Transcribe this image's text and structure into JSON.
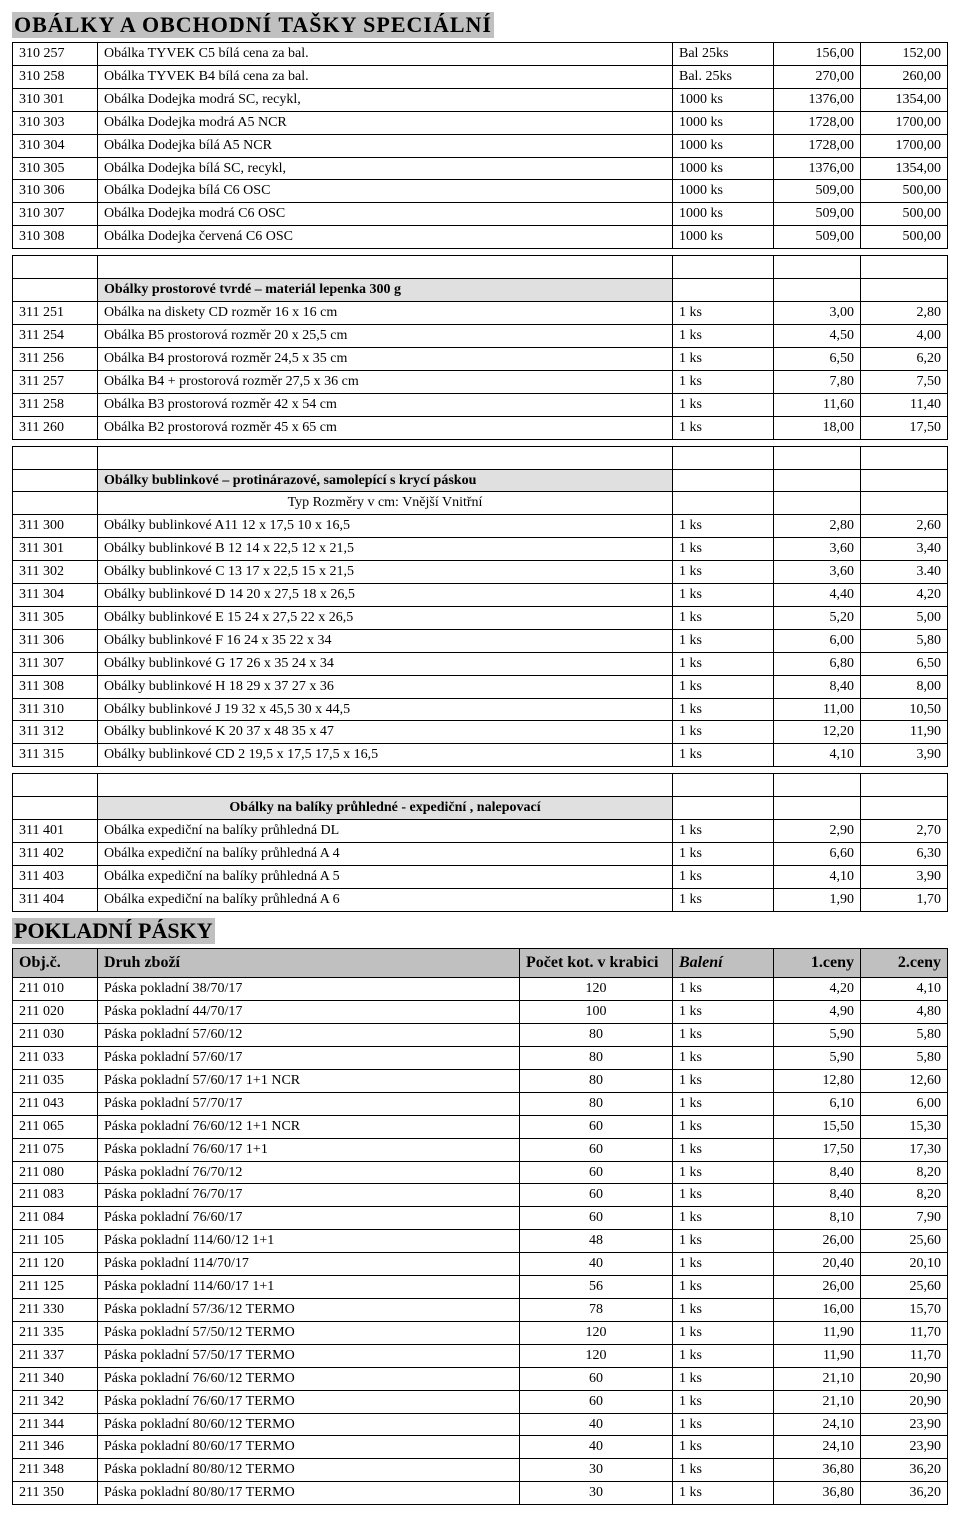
{
  "title_main": "OBÁLKY  A  OBCHODNÍ  TAŠKY   SPECIÁLNÍ",
  "title_pokl": "POKLADNÍ PÁSKY",
  "header2": {
    "obj": "Obj.č.",
    "druh": "Druh zboží",
    "kot": "Počet kot. v krabici",
    "baleni": "Balení",
    "c1": "1.ceny",
    "c2": "2.ceny"
  },
  "sec_typ": "Typ          Rozměry v cm:   Vnější      Vnitřní",
  "sec_obalky_prost": "Obálky prostorové tvrdé – materiál lepenka 300 g",
  "sec_obalky_bub": "Obálky  bublinkové – protinárazové, samolepící  s krycí páskou",
  "sec_obalky_bal": "Obálky na balíky průhledné  - expediční , nalepovací",
  "rows_a": [
    [
      "310 257",
      "Obálka TYVEK  C5   bílá                 cena za bal.",
      "Bal  25ks",
      "156,00",
      "152,00"
    ],
    [
      "310 258",
      "Obálka TYVEK  B4   bílá                 cena za bal.",
      "Bal.  25ks",
      "270,00",
      "260,00"
    ],
    [
      "310 301",
      "Obálka Dodejka  modrá  SC, recykl,",
      "1000 ks",
      "1376,00",
      "1354,00"
    ],
    [
      "310 303",
      "Obálka Dodejka  modrá  A5  NCR",
      "1000 ks",
      "1728,00",
      "1700,00"
    ],
    [
      "310 304",
      "Obálka Dodejka bílá      A5  NCR",
      "1000 ks",
      "1728,00",
      "1700,00"
    ],
    [
      "310 305",
      "Obálka Dodejka  bílá     SC, recykl,",
      "1000 ks",
      "1376,00",
      "1354,00"
    ],
    [
      "310 306",
      "Obálka Dodejka bílá       C6   OSC",
      "1000 ks",
      "509,00",
      "500,00"
    ],
    [
      "310 307",
      "Obálka Dodejka modrá   C6   OSC",
      "1000 ks",
      "509,00",
      "500,00"
    ],
    [
      "310 308",
      "Obálka Dodejka červená  C6   OSC",
      "1000 ks",
      "509,00",
      "500,00"
    ]
  ],
  "rows_prost": [
    [
      "311 251",
      "Obálka na diskety CD          rozměr  16    x 16 cm",
      "1 ks",
      "3,00",
      "2,80"
    ],
    [
      "311 254",
      "Obálka  B5  prostorová          rozměr  20    x 25,5 cm",
      "1 ks",
      "4,50",
      "4,00"
    ],
    [
      "311 256",
      "Obálka  B4  prostorová          rozměr  24,5 x 35 cm",
      "1 ks",
      "6,50",
      "6,20"
    ],
    [
      "311 257",
      "Obálka  B4 + prostorová        rozměr  27,5 x 36 cm",
      "1 ks",
      "7,80",
      "7,50"
    ],
    [
      "311 258",
      "Obálka  B3  prostorová          rozměr  42    x 54 cm",
      "1 ks",
      "11,60",
      "11,40"
    ],
    [
      "311 260",
      "Obálka  B2  prostorová          rozměr   45   x 65 cm",
      "1 ks",
      "18,00",
      "17,50"
    ]
  ],
  "rows_bub": [
    [
      "311 300",
      "Obálky bublinkové  A11              12 x 17,5     10 x 16,5",
      "1 ks",
      "2,80",
      "2,60"
    ],
    [
      "311 301",
      "Obálky bublinkové  B 12             14 x 22,5     12 x 21,5",
      "1 ks",
      "3,60",
      "3,40"
    ],
    [
      "311 302",
      "Obálky bublinkové  C 13             17 x 22,5    15 x 21,5",
      "1 ks",
      "3,60",
      "3.40"
    ],
    [
      "311 304",
      "Obálky bublinkové  D 14            20 x 27,5     18 x 26,5",
      "1 ks",
      "4,40",
      "4,20"
    ],
    [
      "311 305",
      "Obálky bublinkové  E 15              24 x 27,5    22 x 26,5",
      "1 ks",
      "5,20",
      "5,00"
    ],
    [
      "311 306",
      "Obálky bublinkové  F 16              24 x 35       22 x 34",
      "1 ks",
      "6,00",
      "5,80"
    ],
    [
      "311 307",
      "Obálky bublinkové  G 17             26 x 35       24 x 34",
      "1 ks",
      "6,80",
      "6,50"
    ],
    [
      "311 308",
      "Obálky bublinkové  H 18             29 x 37       27 x 36",
      "1 ks",
      "8,40",
      "8,00"
    ],
    [
      "311 310",
      "Obálky bublinkové   J 19              32 x 45,5     30 x 44,5",
      "1 ks",
      "11,00",
      "10,50"
    ],
    [
      "311 312",
      "Obálky bublinkové  K 20             37 x 48        35 x 47",
      "1 ks",
      "12,20",
      "11,90"
    ],
    [
      "311 315",
      "Obálky bublinkové  CD 2        19,5 x 17,5    17,5 x 16,5",
      "1 ks",
      "4,10",
      "3,90"
    ]
  ],
  "rows_bal": [
    [
      "311 401",
      "Obálka expediční na balíky průhledná   DL",
      "1 ks",
      "2,90",
      "2,70"
    ],
    [
      "311 402",
      "Obálka expediční na balíky průhledná   A 4",
      "1 ks",
      "6,60",
      "6,30"
    ],
    [
      "311 403",
      "Obálka expediční na balíky průhledná   A 5",
      "1 ks",
      "4,10",
      "3,90"
    ],
    [
      "311 404",
      "Obálka expediční na balíky průhledná   A 6",
      "1 ks",
      "1,90",
      "1,70"
    ]
  ],
  "rows_pokl": [
    [
      "211 010",
      "Páska pokladní   38/70/17",
      "120",
      "1 ks",
      "4,20",
      "4,10"
    ],
    [
      "211 020",
      "Páska pokladní   44/70/17",
      "100",
      "1 ks",
      "4,90",
      "4,80"
    ],
    [
      "211 030",
      "Páska pokladní   57/60/12",
      "80",
      "1 ks",
      "5,90",
      "5,80"
    ],
    [
      "211 033",
      "Páska pokladní   57/60/17",
      "80",
      "1 ks",
      "5,90",
      "5,80"
    ],
    [
      "211 035",
      "Páska pokladní   57/60/17 1+1  NCR",
      "80",
      "1 ks",
      "12,80",
      "12,60"
    ],
    [
      "211 043",
      "Páska pokladní   57/70/17",
      "80",
      "1 ks",
      "6,10",
      "6,00"
    ],
    [
      "211 065",
      "Páska pokladní   76/60/12 1+1  NCR",
      "60",
      "1 ks",
      "15,50",
      "15,30"
    ],
    [
      "211 075",
      "Páska pokladní   76/60/17 1+1",
      "60",
      "1 ks",
      "17,50",
      "17,30"
    ],
    [
      "211 080",
      "Páska pokladní   76/70/12",
      "60",
      "1 ks",
      "8,40",
      "8,20"
    ],
    [
      "211 083",
      "Páska pokladní   76/70/17",
      "60",
      "1 ks",
      "8,40",
      "8,20"
    ],
    [
      "211 084",
      "Páska pokladní   76/60/17",
      "60",
      "1 ks",
      "8,10",
      "7,90"
    ],
    [
      "211 105",
      "Páska pokladní  114/60/12 1+1",
      "48",
      "1 ks",
      "26,00",
      "25,60"
    ],
    [
      "211 120",
      "Páska pokladní  114/70/17",
      "40",
      "1 ks",
      "20,40",
      "20,10"
    ],
    [
      "211 125",
      "Páska pokladní  114/60/17 1+1",
      "56",
      "1 ks",
      "26,00",
      "25,60"
    ],
    [
      "211 330",
      "Páska pokladní   57/36/12  TERMO",
      "78",
      "1 ks",
      "16,00",
      "15,70"
    ],
    [
      "211 335",
      "Páska pokladní   57/50/12  TERMO",
      "120",
      "1 ks",
      "11,90",
      "11,70"
    ],
    [
      "211 337",
      "Páska pokladní   57/50/17  TERMO",
      "120",
      "1 ks",
      "11,90",
      "11,70"
    ],
    [
      "211 340",
      "Páska pokladní   76/60/12  TERMO",
      "60",
      "1 ks",
      "21,10",
      "20,90"
    ],
    [
      "211 342",
      "Páska pokladní   76/60/17  TERMO",
      "60",
      "1 ks",
      "21,10",
      "20,90"
    ],
    [
      "211 344",
      "Páska pokladní   80/60/12  TERMO",
      "40",
      "1 ks",
      "24,10",
      "23,90"
    ],
    [
      "211 346",
      "Páska pokladní   80/60/17  TERMO",
      "40",
      "1 ks",
      "24,10",
      "23,90"
    ],
    [
      "211 348",
      "Páska pokladní   80/80/12  TERMO",
      "30",
      "1 ks",
      "36,80",
      "36,20"
    ],
    [
      "211 350",
      "Páska pokladní   80/80/17  TERMO",
      "30",
      "1 ks",
      "36,80",
      "36,20"
    ]
  ]
}
